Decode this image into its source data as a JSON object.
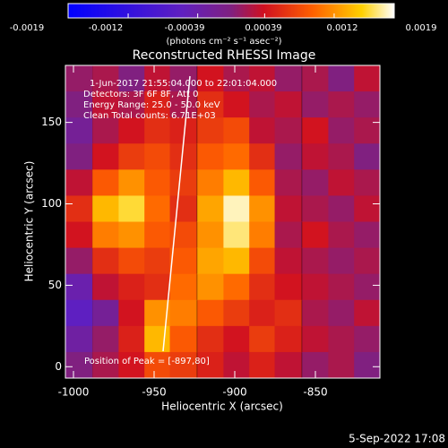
{
  "chart_data": {
    "type": "heatmap",
    "title": "Reconstructed RHESSI Image",
    "xlabel": "Heliocentric X (arcsec)",
    "ylabel": "Heliocentric Y (arcsec)",
    "annotations": [
      "1-Jun-2017 21:55:04.000 to 22:01:04.000",
      "Detectors: 3F 6F 8F, Att 0",
      "Energy Range: 25.0 - 50.0 keV",
      "Clean     Total counts: 6.71E+03"
    ],
    "peak_label": "Position of Peak = [-897,80]",
    "footer": "5-Sep-2022 17:08",
    "colorbar_label": "(photons cm⁻² s⁻¹ asec⁻²)",
    "colorbar_lim": [
      -0.0019,
      0.0019
    ],
    "colorbar_ticks": [
      -0.0019,
      -0.0012,
      -0.00039,
      0.00039,
      0.0012,
      0.0019
    ],
    "xlim": [
      -1005,
      -810
    ],
    "ylim": [
      -7,
      185
    ],
    "xticks": [
      -1000,
      -950,
      -900,
      -850
    ],
    "yticks": [
      0,
      50,
      100,
      150
    ],
    "x": [
      -997,
      -980,
      -964,
      -948,
      -932,
      -915,
      -899,
      -883,
      -867,
      -850,
      -834,
      -818
    ],
    "y": [
      177,
      161,
      145,
      129,
      113,
      97,
      81,
      65,
      49,
      33,
      17,
      1
    ],
    "z": [
      [
        0.0001,
        0.0002,
        0,
        0.0003,
        0.0001,
        0.0004,
        0.0002,
        0.0003,
        0.0001,
        0.0002,
        0,
        0.0003
      ],
      [
        0,
        0.0003,
        0.0002,
        0.0005,
        0.0002,
        0.0006,
        0.0004,
        0.0002,
        0.0003,
        0.0001,
        0.0002,
        0.0001
      ],
      [
        -0.0002,
        0.0002,
        0.0004,
        0.0006,
        0.0005,
        0.0007,
        0.0008,
        0.0003,
        0.0002,
        0.0004,
        0.0001,
        0.0002
      ],
      [
        0,
        0.0004,
        0.0007,
        0.0008,
        0.0006,
        0.0009,
        0.001,
        0.0006,
        0.0001,
        0.0003,
        0.0002,
        0
      ],
      [
        0.0003,
        0.0009,
        0.0012,
        0.0009,
        0.0007,
        0.0011,
        0.0014,
        0.0009,
        0.0002,
        0.0001,
        0.0003,
        0.0002
      ],
      [
        0.0006,
        0.0014,
        0.0016,
        0.001,
        0.0006,
        0.0013,
        0.0018,
        0.0012,
        0.0003,
        0.0002,
        0.0001,
        0.0003
      ],
      [
        0.0004,
        0.0011,
        0.0012,
        0.0009,
        0.0008,
        0.0012,
        0.0017,
        0.0011,
        0.0002,
        0.0004,
        0.0002,
        0.0001
      ],
      [
        0.0001,
        0.0006,
        0.0008,
        0.0007,
        0.0009,
        0.0013,
        0.0014,
        0.0008,
        0.0003,
        0.0002,
        0.0001,
        0.0002
      ],
      [
        -0.0004,
        0.0003,
        0.0005,
        0.0006,
        0.001,
        0.0012,
        0.001,
        0.0006,
        0.0004,
        0.0003,
        0.0002,
        0.0001
      ],
      [
        -0.0006,
        -0.0002,
        0.0004,
        0.0012,
        0.0011,
        0.0009,
        0.0007,
        0.0005,
        0.0006,
        0.0002,
        0.0001,
        0.0003
      ],
      [
        -0.0003,
        0.0001,
        0.0005,
        0.0014,
        0.0009,
        0.0006,
        0.0004,
        0.0007,
        0.0005,
        0.0003,
        0.0002,
        0.0001
      ],
      [
        0,
        0.0002,
        0.0004,
        0.0008,
        0.0007,
        0.0005,
        0.0003,
        0.0005,
        0.0003,
        0.0001,
        0.0002,
        0
      ]
    ]
  }
}
